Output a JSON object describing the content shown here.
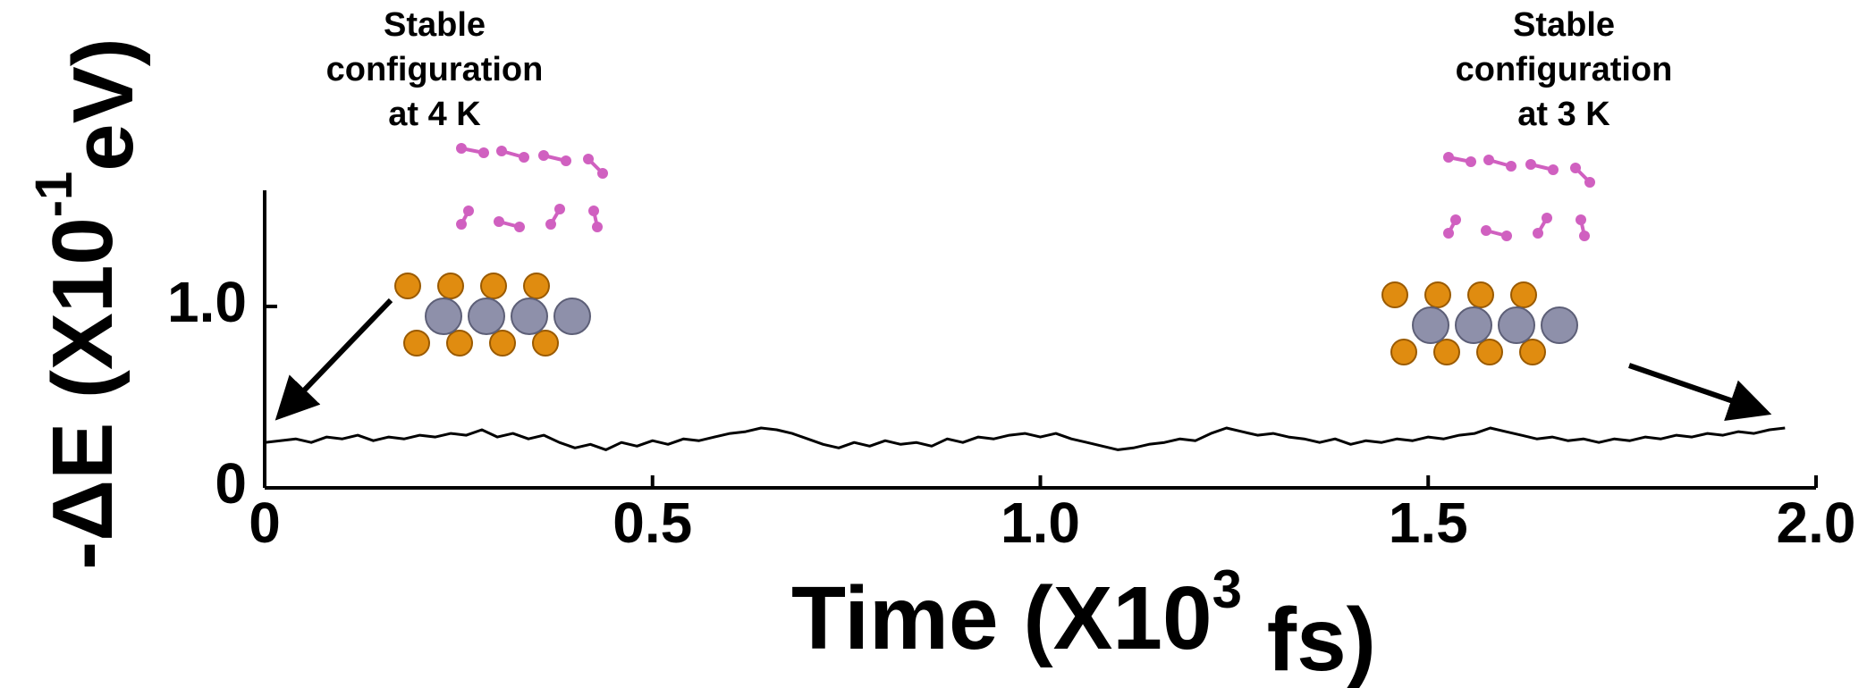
{
  "chart_data": {
    "type": "line",
    "y_label": "-ΔE (X10",
    "y_label_exponent": "-1",
    "y_label_unit": "eV)",
    "x_label": "Time (X10",
    "x_label_exponent": "3",
    "x_label_unit": " fs)",
    "annotations": [
      {
        "lines": [
          "Stable",
          "configuration",
          "at 4 K"
        ]
      },
      {
        "lines": [
          "Stable",
          "configuration",
          "at 3 K"
        ]
      }
    ],
    "color": "#000000",
    "xlim": [
      0,
      2.0
    ],
    "ylim": [
      0,
      1.64
    ],
    "xticks": [
      0,
      0.5,
      {
        "value": 1,
        "label": "1.0"
      },
      {
        "value": 1.5,
        "label": "1.5"
      },
      {
        "value": 2,
        "label": "2.0"
      }
    ],
    "yticks": [
      0,
      {
        "value": 1,
        "label": "1.0"
      }
    ],
    "x": [
      0,
      0.02,
      0.04,
      0.06,
      0.08,
      0.1,
      0.12,
      0.14,
      0.16,
      0.18,
      0.2,
      0.22,
      0.24,
      0.26,
      0.28,
      0.3,
      0.32,
      0.34,
      0.36,
      0.38,
      0.4,
      0.42,
      0.44,
      0.46,
      0.48,
      0.5,
      0.52,
      0.54,
      0.56,
      0.58,
      0.6,
      0.62,
      0.64,
      0.66,
      0.68,
      0.7,
      0.72,
      0.74,
      0.76,
      0.78,
      0.8,
      0.82,
      0.84,
      0.86,
      0.88,
      0.9,
      0.92,
      0.94,
      0.96,
      0.98,
      1,
      1.02,
      1.04,
      1.06,
      1.08,
      1.1,
      1.12,
      1.14,
      1.16,
      1.18,
      1.2,
      1.22,
      1.24,
      1.26,
      1.28,
      1.3,
      1.32,
      1.34,
      1.36,
      1.38,
      1.4,
      1.42,
      1.44,
      1.46,
      1.48,
      1.5,
      1.52,
      1.54,
      1.56,
      1.58,
      1.6,
      1.62,
      1.64,
      1.66,
      1.68,
      1.7,
      1.72,
      1.74,
      1.76,
      1.78,
      1.8,
      1.82,
      1.84,
      1.86,
      1.88,
      1.9,
      1.92,
      1.94,
      1.96
    ],
    "values": [
      0.25,
      0.26,
      0.27,
      0.25,
      0.28,
      0.27,
      0.29,
      0.26,
      0.28,
      0.27,
      0.29,
      0.28,
      0.3,
      0.29,
      0.32,
      0.28,
      0.3,
      0.27,
      0.29,
      0.25,
      0.22,
      0.24,
      0.21,
      0.25,
      0.23,
      0.26,
      0.24,
      0.27,
      0.26,
      0.28,
      0.3,
      0.31,
      0.33,
      0.32,
      0.3,
      0.27,
      0.24,
      0.22,
      0.25,
      0.23,
      0.26,
      0.24,
      0.25,
      0.23,
      0.27,
      0.25,
      0.28,
      0.27,
      0.29,
      0.3,
      0.28,
      0.3,
      0.27,
      0.25,
      0.23,
      0.21,
      0.22,
      0.24,
      0.25,
      0.27,
      0.26,
      0.3,
      0.33,
      0.31,
      0.29,
      0.3,
      0.28,
      0.27,
      0.25,
      0.27,
      0.24,
      0.26,
      0.25,
      0.27,
      0.26,
      0.28,
      0.27,
      0.29,
      0.3,
      0.33,
      0.31,
      0.29,
      0.27,
      0.28,
      0.26,
      0.27,
      0.25,
      0.27,
      0.26,
      0.28,
      0.27,
      0.29,
      0.28,
      0.3,
      0.29,
      0.31,
      0.3,
      0.32,
      0.33
    ]
  }
}
